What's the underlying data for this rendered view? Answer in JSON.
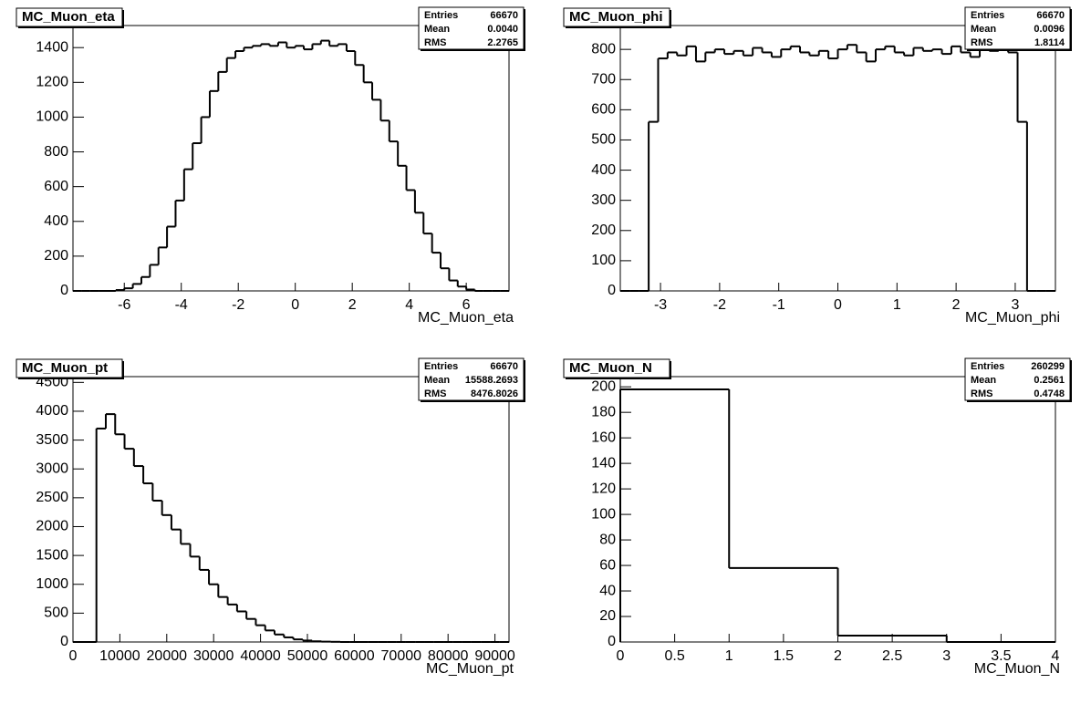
{
  "chart_data": [
    {
      "type": "histogram",
      "title": "MC_Muon_eta",
      "x_label": "MC_Muon_eta",
      "stats": [
        {
          "name": "Entries",
          "value": "66670"
        },
        {
          "name": "Mean",
          "value": "0.0040"
        },
        {
          "name": "RMS",
          "value": "2.2765"
        }
      ],
      "bins": [
        -7.8,
        -7.5,
        -7.2,
        -6.9,
        -6.6,
        -6.3,
        -6,
        -5.7,
        -5.4,
        -5.1,
        -4.8,
        -4.5,
        -4.2,
        -3.9,
        -3.6,
        -3.3,
        -3,
        -2.7,
        -2.4,
        -2.1,
        -1.8,
        -1.5,
        -1.2,
        -0.9,
        -0.6,
        -0.3,
        0,
        0.3,
        0.6,
        0.9,
        1.2,
        1.5,
        1.8,
        2.1,
        2.4,
        2.7,
        3,
        3.3,
        3.6,
        3.9,
        4.2,
        4.5,
        4.8,
        5.1,
        5.4,
        5.7,
        6,
        6.3,
        6.6,
        6.9,
        7.2,
        7.5
      ],
      "counts": [
        0,
        0,
        0,
        0,
        0,
        5,
        15,
        40,
        80,
        150,
        250,
        370,
        520,
        700,
        850,
        1000,
        1150,
        1260,
        1340,
        1380,
        1400,
        1410,
        1420,
        1410,
        1430,
        1400,
        1410,
        1390,
        1420,
        1440,
        1410,
        1420,
        1380,
        1300,
        1200,
        1100,
        980,
        860,
        720,
        580,
        450,
        330,
        220,
        130,
        60,
        25,
        8,
        0,
        0,
        0,
        0
      ],
      "xlim": [
        -7.8,
        7.5
      ],
      "ylim": [
        0,
        1527
      ],
      "xticks": [
        -6,
        -4,
        -2,
        0,
        2,
        4,
        6
      ],
      "yticks": [
        0,
        200,
        400,
        600,
        800,
        1000,
        1200,
        1400
      ],
      "color": "#000000"
    },
    {
      "type": "histogram",
      "title": "MC_Muon_phi",
      "x_label": "MC_Muon_phi",
      "stats": [
        {
          "name": "Entries",
          "value": "66670"
        },
        {
          "name": "Mean",
          "value": "0.0096"
        },
        {
          "name": "RMS",
          "value": "1.8114"
        }
      ],
      "bins": [
        -3.68,
        -3.52,
        -3.36,
        -3.2,
        -3.04,
        -2.88,
        -2.72,
        -2.56,
        -2.4,
        -2.24,
        -2.08,
        -1.92,
        -1.76,
        -1.6,
        -1.44,
        -1.28,
        -1.12,
        -0.96,
        -0.8,
        -0.64,
        -0.48,
        -0.32,
        -0.16,
        0,
        0.16,
        0.32,
        0.48,
        0.64,
        0.8,
        0.96,
        1.12,
        1.28,
        1.44,
        1.6,
        1.76,
        1.92,
        2.08,
        2.24,
        2.4,
        2.56,
        2.72,
        2.88,
        3.04,
        3.2,
        3.36,
        3.52,
        3.68
      ],
      "counts": [
        0,
        0,
        0,
        560,
        770,
        790,
        780,
        810,
        760,
        790,
        800,
        785,
        795,
        780,
        805,
        790,
        775,
        800,
        810,
        790,
        780,
        795,
        770,
        800,
        815,
        790,
        760,
        800,
        810,
        790,
        780,
        805,
        795,
        800,
        785,
        810,
        790,
        775,
        800,
        795,
        810,
        790,
        560,
        0,
        0,
        0
      ],
      "xlim": [
        -3.68,
        3.68
      ],
      "ylim": [
        0,
        879
      ],
      "xticks": [
        -3,
        -2,
        -1,
        0,
        1,
        2,
        3
      ],
      "yticks": [
        0,
        100,
        200,
        300,
        400,
        500,
        600,
        700,
        800
      ],
      "color": "#000000"
    },
    {
      "type": "histogram",
      "title": "MC_Muon_pt",
      "x_label": "MC_Muon_pt",
      "stats": [
        {
          "name": "Entries",
          "value": "66670"
        },
        {
          "name": "Mean",
          "value": "15588.2693"
        },
        {
          "name": "RMS",
          "value": "8476.8026"
        }
      ],
      "bins": [
        0,
        5000,
        7000,
        9000,
        11000,
        13000,
        15000,
        17000,
        19000,
        21000,
        23000,
        25000,
        27000,
        29000,
        31000,
        33000,
        35000,
        37000,
        39000,
        41000,
        43000,
        45000,
        47000,
        49000,
        51000,
        53000,
        55000,
        57000,
        59000,
        61000,
        63000,
        65000,
        67000,
        69000,
        71000,
        73000,
        75000,
        77000,
        79000,
        81000,
        83000,
        85000,
        87000,
        89000,
        91000,
        93000
      ],
      "counts": [
        0,
        3700,
        3950,
        3600,
        3350,
        3050,
        2750,
        2450,
        2200,
        1950,
        1700,
        1480,
        1250,
        1000,
        780,
        650,
        530,
        400,
        290,
        200,
        130,
        80,
        45,
        25,
        12,
        6,
        3,
        0,
        0,
        0,
        0,
        0,
        0,
        0,
        0,
        0,
        0,
        0,
        0,
        0,
        0,
        0,
        0,
        0,
        0
      ],
      "xlim": [
        0,
        93000
      ],
      "ylim": [
        0,
        4600
      ],
      "xticks": [
        0,
        10000,
        20000,
        30000,
        40000,
        50000,
        60000,
        70000,
        80000,
        90000
      ],
      "yticks": [
        0,
        500,
        1000,
        1500,
        2000,
        2500,
        3000,
        3500,
        4000,
        4500
      ],
      "color": "#000000"
    },
    {
      "type": "histogram",
      "title": "MC_Muon_N",
      "x_label": "MC_Muon_N",
      "stats": [
        {
          "name": "Entries",
          "value": "260299"
        },
        {
          "name": "Mean",
          "value": "0.2561"
        },
        {
          "name": "RMS",
          "value": "0.4748"
        }
      ],
      "bins": [
        0,
        1,
        2,
        3,
        4
      ],
      "counts": [
        198,
        58,
        5,
        0
      ],
      "xlim": [
        0,
        4
      ],
      "ylim": [
        0,
        208
      ],
      "xticks": [
        0,
        0.5,
        1,
        1.5,
        2,
        2.5,
        3,
        3.5,
        4
      ],
      "yticks": [
        0,
        20,
        40,
        60,
        80,
        100,
        120,
        140,
        160,
        180,
        200
      ],
      "color": "#000000"
    }
  ]
}
